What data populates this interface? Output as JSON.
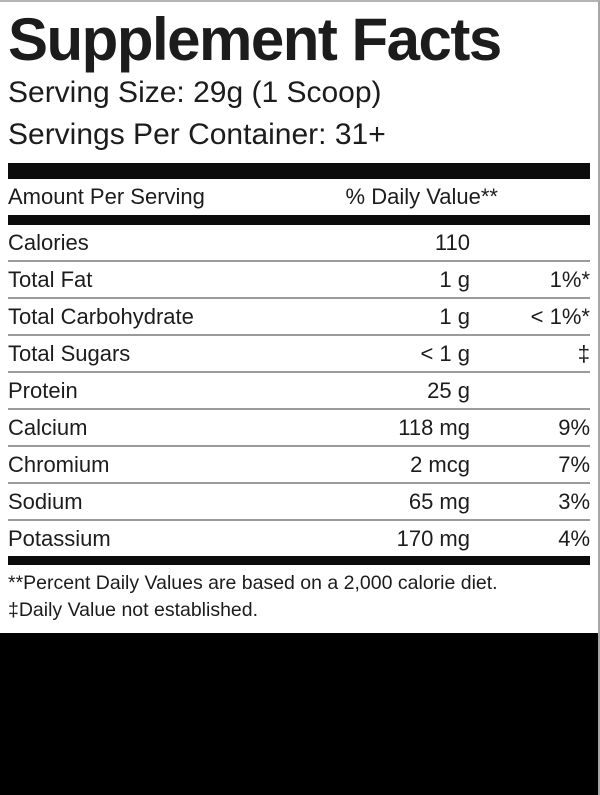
{
  "label": {
    "title": "Supplement Facts",
    "serving_size": "Serving Size: 29g (1 Scoop)",
    "servings_per_container": "Servings Per Container: 31+",
    "table": {
      "col_amount_header": "Amount Per Serving",
      "col_dv_header": "% Daily Value**",
      "rows": [
        {
          "name": "Calories",
          "amount": "110",
          "dv": ""
        },
        {
          "name": "Total Fat",
          "amount": "1 g",
          "dv": "1%*"
        },
        {
          "name": "Total Carbohydrate",
          "amount": "1 g",
          "dv": "< 1%*"
        },
        {
          "name": "Total Sugars",
          "amount": "< 1 g",
          "dv": "‡"
        },
        {
          "name": "Protein",
          "amount": "25 g",
          "dv": ""
        },
        {
          "name": "Calcium",
          "amount": "118 mg",
          "dv": "9%"
        },
        {
          "name": "Chromium",
          "amount": "2 mcg",
          "dv": "7%"
        },
        {
          "name": "Sodium",
          "amount": "65 mg",
          "dv": "3%"
        },
        {
          "name": "Potassium",
          "amount": "170 mg",
          "dv": "4%"
        }
      ]
    },
    "footnotes": [
      "**Percent Daily Values are based on a 2,000 calorie diet.",
      "‡Daily Value not established."
    ],
    "colors": {
      "text": "#1c1c1c",
      "bars": "#0c0c0c",
      "hairline": "#9b9b9b",
      "bottom_block": "#000000"
    }
  }
}
